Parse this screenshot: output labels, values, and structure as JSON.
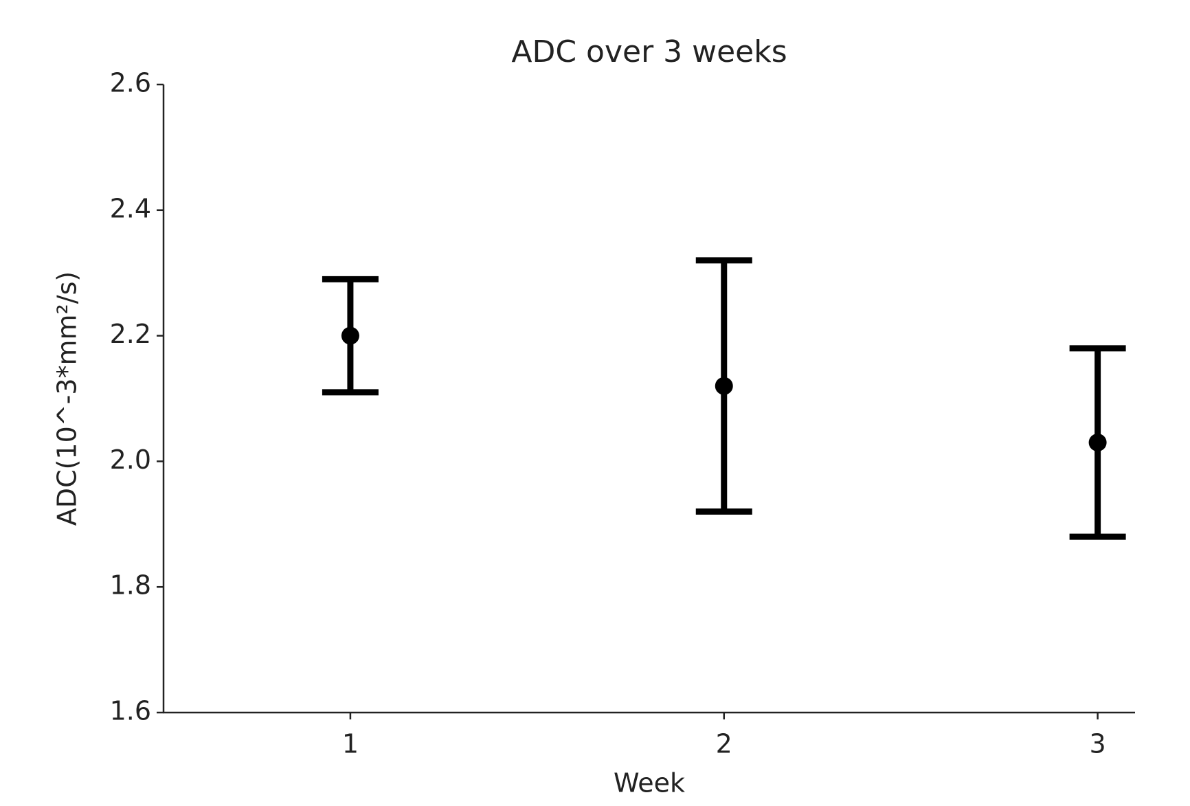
{
  "chart_data": {
    "type": "errorbar",
    "title": "ADC over 3 weeks",
    "x_label": "Week",
    "y_label": "ADC(10^-3*mm²/s)",
    "x": [
      1,
      2,
      3
    ],
    "values": [
      2.2,
      2.12,
      2.03
    ],
    "errors": [
      0.09,
      0.2,
      0.15
    ],
    "color": "#000000",
    "xlim": [
      0.5,
      3.1
    ],
    "xticks": [
      1,
      2,
      3
    ],
    "ylim": [
      1.6,
      2.6
    ],
    "yticks": [
      1.6,
      1.8,
      {
        "value": 2,
        "label": "2.0"
      },
      2.2,
      2.4,
      2.6
    ],
    "grid": false
  }
}
